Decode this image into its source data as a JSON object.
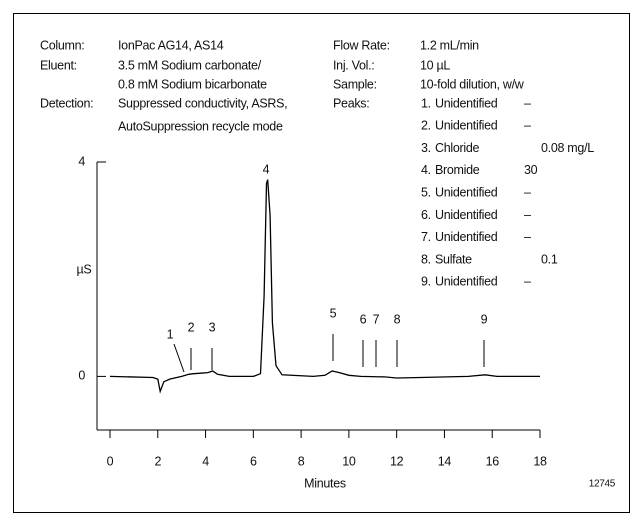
{
  "chart_data": {
    "type": "line",
    "x_label": "Minutes",
    "y_label": "µS",
    "xlim": [
      0,
      18
    ],
    "ylim": [
      -1,
      4
    ],
    "xticks": [
      0,
      2,
      4,
      6,
      8,
      10,
      12,
      14,
      16,
      18
    ],
    "yticks": [
      0,
      4
    ],
    "color": "#000000",
    "x": [
      0,
      1.8,
      2.0,
      2.1,
      2.25,
      2.5,
      3.0,
      3.3,
      3.5,
      3.8,
      4.1,
      4.3,
      4.5,
      5.0,
      6.0,
      6.3,
      6.45,
      6.55,
      6.6,
      6.7,
      6.8,
      6.95,
      7.2,
      8.5,
      9.0,
      9.3,
      9.6,
      10.0,
      10.5,
      11.5,
      12.0,
      13.0,
      15.0,
      15.7,
      16.2,
      18.0
    ],
    "values": [
      0,
      -0.02,
      -0.05,
      -0.28,
      -0.1,
      -0.05,
      0.0,
      0.04,
      0.05,
      0.06,
      0.07,
      0.1,
      0.04,
      0.0,
      0.0,
      0.05,
      1.5,
      3.6,
      3.67,
      3.0,
      1.0,
      0.2,
      0.03,
      0.0,
      0.02,
      0.1,
      0.07,
      0.02,
      0.0,
      -0.01,
      -0.03,
      -0.02,
      0.0,
      0.03,
      0.0,
      0.0
    ],
    "peak_labels": [
      "1",
      "2",
      "3",
      "4",
      "5",
      "6",
      "7",
      "8",
      "9"
    ]
  },
  "conditions": {
    "left": [
      {
        "label": "Column:",
        "lines": [
          "IonPac AG14, AS14"
        ]
      },
      {
        "label": "Eluent:",
        "lines": [
          "3.5 mM Sodium carbonate/",
          "0.8 mM Sodium bicarbonate"
        ]
      },
      {
        "label": "Detection:",
        "lines": [
          "Suppressed conductivity, ASRS,",
          "AutoSuppression recycle mode"
        ]
      }
    ],
    "right": [
      {
        "label": "Flow Rate:",
        "value": "1.2 mL/min"
      },
      {
        "label": "Inj. Vol.:",
        "value": "10 µL"
      },
      {
        "label": "Sample:",
        "value": "10-fold dilution, w/w"
      }
    ],
    "peaks_label": "Peaks:",
    "peaks": [
      {
        "number": "1.",
        "name": "Unidentified",
        "amount": "–"
      },
      {
        "number": "2.",
        "name": "Unidentified",
        "amount": "–"
      },
      {
        "number": "3.",
        "name": "Chloride",
        "amount": "0.08 mg/L"
      },
      {
        "number": "4.",
        "name": "Bromide",
        "amount": "30"
      },
      {
        "number": "5.",
        "name": "Unidentified",
        "amount": "–"
      },
      {
        "number": "6.",
        "name": "Unidentified",
        "amount": "–"
      },
      {
        "number": "7.",
        "name": "Unidentified",
        "amount": "–"
      },
      {
        "number": "8.",
        "name": "Sulfate",
        "amount": "0.1"
      },
      {
        "number": "9.",
        "name": "Unidentified",
        "amount": "–"
      }
    ]
  },
  "figure_number": "12745"
}
